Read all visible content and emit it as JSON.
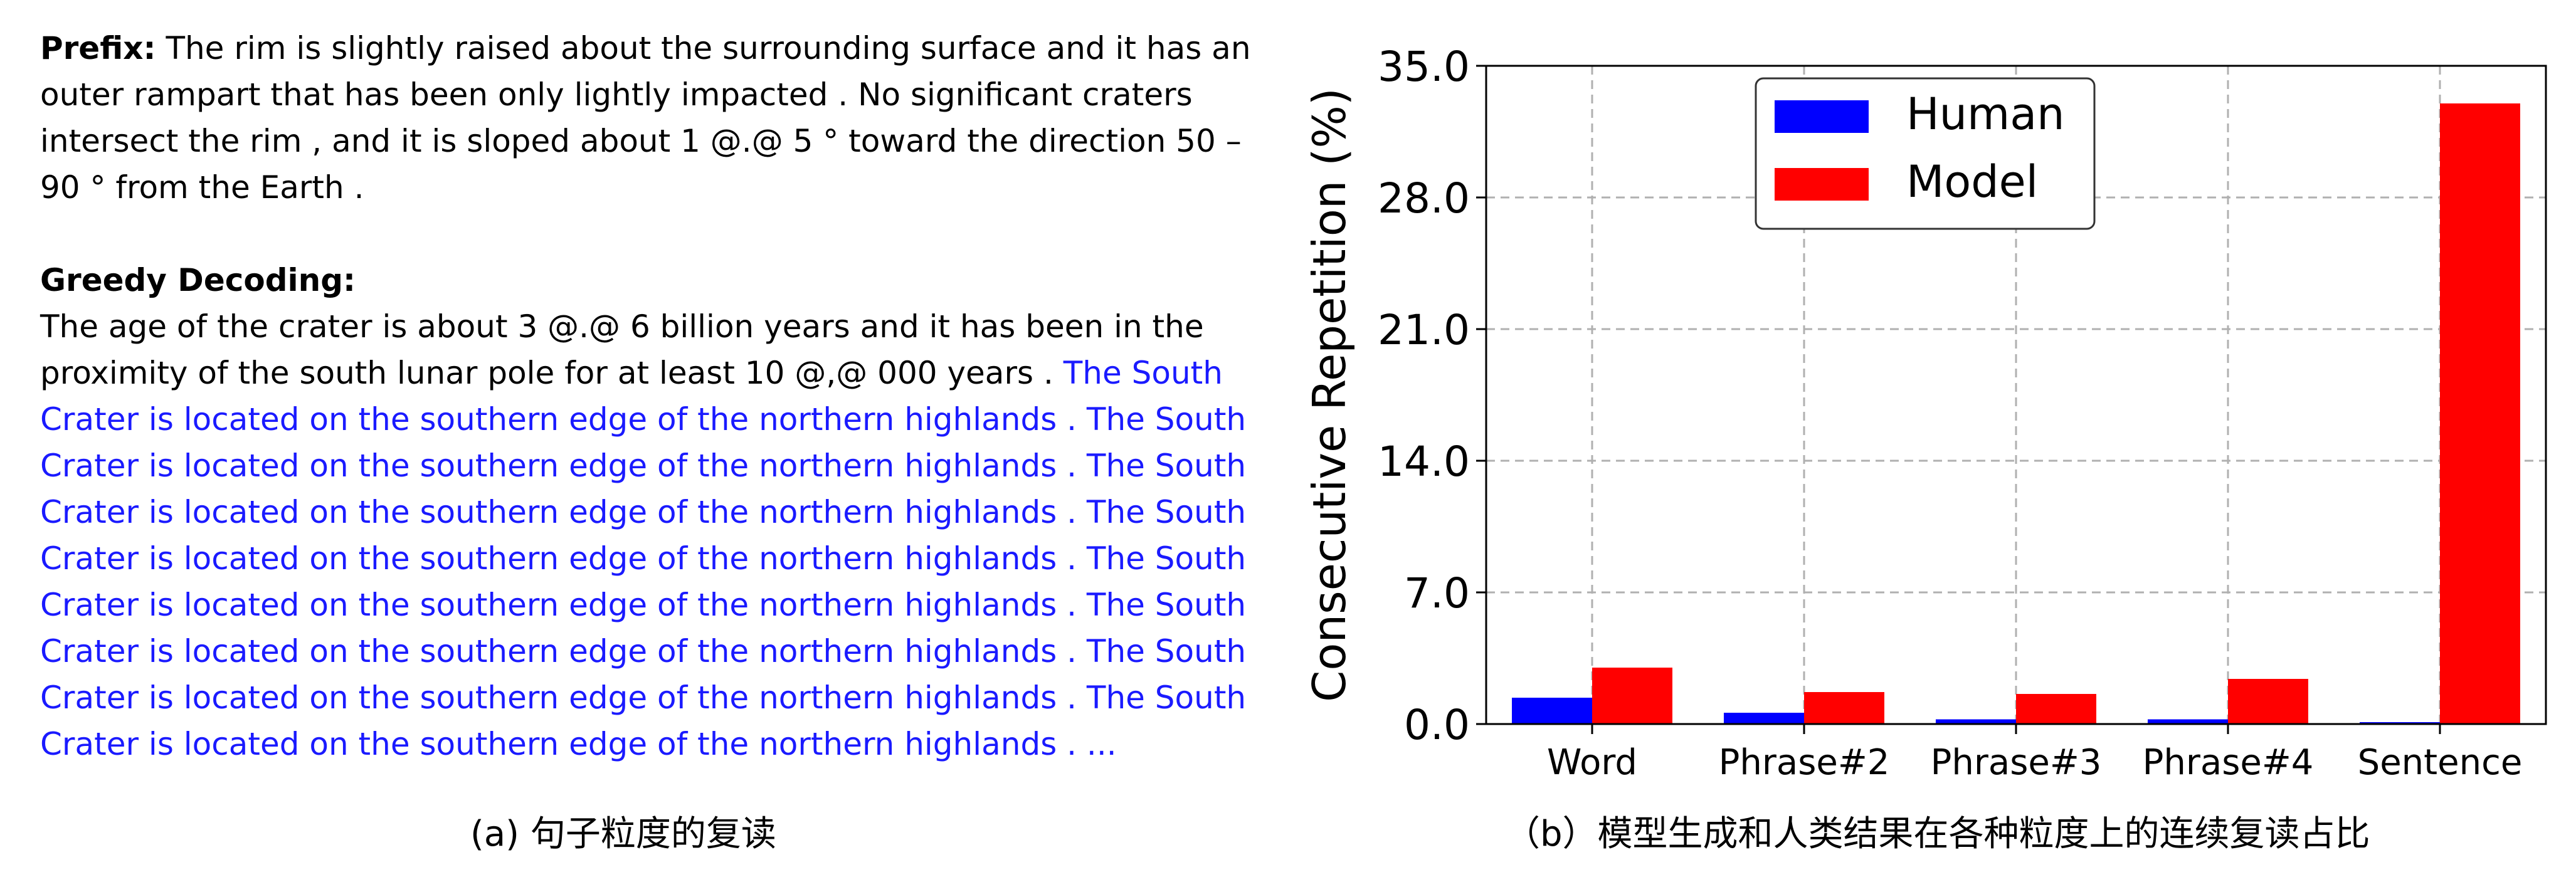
{
  "left": {
    "prefix_label": "Prefix:",
    "prefix_lines": [
      "The rim is slightly raised about the surrounding surface and it has an",
      "outer rampart that has been only lightly impacted . No significant craters",
      "intersect the rim , and it is sloped about 1 @.@ 5 ° toward the direction 50 –",
      "90 ° from the Earth ."
    ],
    "greedy_label": "Greedy Decoding:",
    "greedy_line1": "The age of the crater is about 3 @.@ 6 billion years and it has been in the",
    "greedy_line2_black": "proximity of the south lunar pole for at least 10 @,@ 000 years . ",
    "greedy_line2_blue": "The South",
    "repeat_line": "Crater is located on the southern edge of the northern highlands . The South",
    "last_line": "Crater is located on the southern edge of the northern highlands . ..."
  },
  "captions": {
    "a": "(a) 句子粒度的复读",
    "b": "（b）模型生成和人类结果在各种粒度上的连续复读占比"
  },
  "colors": {
    "human": "#0000ff",
    "model": "#ff0000",
    "blue_text": "#1a1aff"
  },
  "chart_data": {
    "type": "bar",
    "categories": [
      "Word",
      "Phrase#2",
      "Phrase#3",
      "Phrase#4",
      "Sentence"
    ],
    "series": [
      {
        "name": "Human",
        "values": [
          1.4,
          0.6,
          0.25,
          0.25,
          0.1
        ]
      },
      {
        "name": "Model",
        "values": [
          3.0,
          1.7,
          1.6,
          2.4,
          33.0
        ]
      }
    ],
    "ylabel": "Consecutive Repetition (%)",
    "ylim": [
      0,
      35
    ],
    "yticks": [
      "0.0",
      "7.0",
      "14.0",
      "21.0",
      "28.0",
      "35.0"
    ],
    "ytick_values": [
      0,
      7,
      14,
      21,
      28,
      35
    ],
    "grid": true,
    "legend": "top-left"
  }
}
